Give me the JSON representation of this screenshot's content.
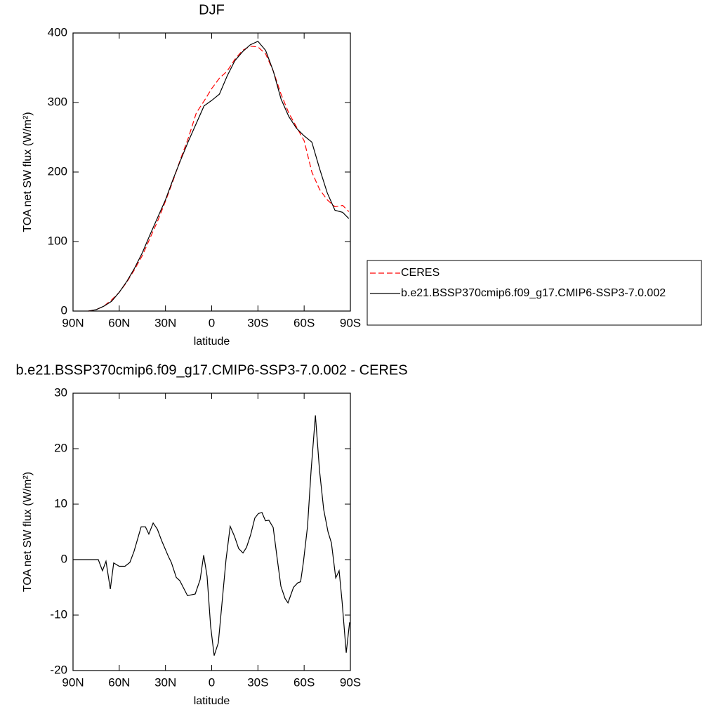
{
  "chart_data": [
    {
      "type": "line",
      "title": "DJF",
      "xlabel": "latitude",
      "ylabel": "TOA net SW flux (W/m²)",
      "xlim": [
        90,
        -90
      ],
      "ylim": [
        0,
        400
      ],
      "xticks": [
        {
          "value": 90,
          "label": "90N"
        },
        {
          "value": 60,
          "label": "60N"
        },
        {
          "value": 30,
          "label": "30N"
        },
        0,
        {
          "value": -30,
          "label": "30S"
        },
        {
          "value": -60,
          "label": "60S"
        },
        {
          "value": -90,
          "label": "90S"
        }
      ],
      "yticks": [
        0,
        100,
        200,
        300,
        400
      ],
      "legend": "outside-right",
      "x": [
        80,
        75,
        70,
        65,
        60,
        55,
        50,
        45,
        40,
        35,
        30,
        25,
        20,
        15,
        10,
        5,
        0,
        -5,
        -10,
        -15,
        -20,
        -25,
        -30,
        -35,
        -40,
        -45,
        -50,
        -55,
        -60,
        -65,
        -70,
        -75,
        -80,
        -85,
        -89
      ],
      "series": [
        {
          "name": "CERES",
          "color": "#ff0000",
          "style": "dashed",
          "values": [
            0,
            2,
            7,
            16,
            27,
            42,
            60,
            80,
            105,
            130,
            158,
            188,
            220,
            250,
            285,
            302,
            320,
            335,
            345,
            362,
            375,
            381,
            380,
            370,
            345,
            312,
            285,
            265,
            245,
            200,
            175,
            160,
            150,
            152,
            143
          ]
        },
        {
          "name": "b.e21.BSSP370cmip6.f09_g17.CMIP6-SSP3-7.0.002",
          "color": "#000000",
          "style": "solid",
          "values": [
            0,
            2,
            7,
            14,
            27,
            43,
            62,
            84,
            110,
            135,
            160,
            190,
            218,
            245,
            270,
            295,
            303,
            312,
            338,
            360,
            373,
            383,
            388,
            375,
            345,
            305,
            280,
            263,
            252,
            243,
            205,
            170,
            145,
            142,
            133
          ]
        }
      ]
    },
    {
      "type": "line",
      "title": "b.e21.BSSP370cmip6.f09_g17.CMIP6-SSP3-7.0.002 - CERES",
      "xlabel": "latitude",
      "ylabel": "TOA net SW flux (W/m²)",
      "xlim": [
        90,
        -90
      ],
      "ylim": [
        -20,
        30
      ],
      "xticks": [
        {
          "value": 90,
          "label": "90N"
        },
        {
          "value": 60,
          "label": "60N"
        },
        {
          "value": 30,
          "label": "30N"
        },
        0,
        {
          "value": -30,
          "label": "30S"
        },
        {
          "value": -60,
          "label": "60S"
        },
        {
          "value": -90,
          "label": "90S"
        }
      ],
      "yticks": [
        -20,
        -10,
        0,
        10,
        20,
        30
      ],
      "x": [
        90,
        73.6,
        70.9,
        68.6,
        65.8,
        63.6,
        60,
        56.3,
        53.1,
        50.4,
        45.8,
        43,
        40.8,
        38,
        35.3,
        32.6,
        28,
        26.2,
        23,
        20.7,
        15.7,
        10.7,
        7.5,
        5.2,
        3,
        0.7,
        -1.6,
        -4.3,
        -9.3,
        -12,
        -14.8,
        -17.5,
        -20.3,
        -22.6,
        -25.3,
        -28,
        -30.3,
        -32.6,
        -34.9,
        -37.1,
        -39.9,
        -42.6,
        -44.9,
        -47.6,
        -49.5,
        -53.1,
        -55.8,
        -57.7,
        -59.5,
        -62.2,
        -64.5,
        -67.3,
        -70,
        -72.7,
        -75.5,
        -77.7,
        -80.5,
        -82.7,
        -84.6,
        -87.3,
        -89.5
      ],
      "series": [
        {
          "color": "#000000",
          "style": "solid",
          "values": [
            0,
            0,
            -2,
            -0.3,
            -5.3,
            -0.6,
            -1.2,
            -1.2,
            -0.5,
            1.5,
            5.9,
            5.9,
            4.6,
            6.6,
            5.5,
            3.5,
            0.5,
            -0.5,
            -3.2,
            -3.8,
            -6.5,
            -6.2,
            -3.6,
            0.8,
            -3,
            -12,
            -17.3,
            -15,
            0,
            6,
            4.2,
            2,
            1.2,
            2.2,
            4.5,
            7.5,
            8.3,
            8.5,
            7,
            7.1,
            5.8,
            0,
            -4.8,
            -7,
            -7.8,
            -5,
            -4.2,
            -4,
            -0.5,
            6,
            16,
            26,
            16,
            9,
            5,
            3,
            -3.3,
            -2,
            -7.5,
            -16.8,
            -11.3
          ]
        }
      ]
    }
  ]
}
